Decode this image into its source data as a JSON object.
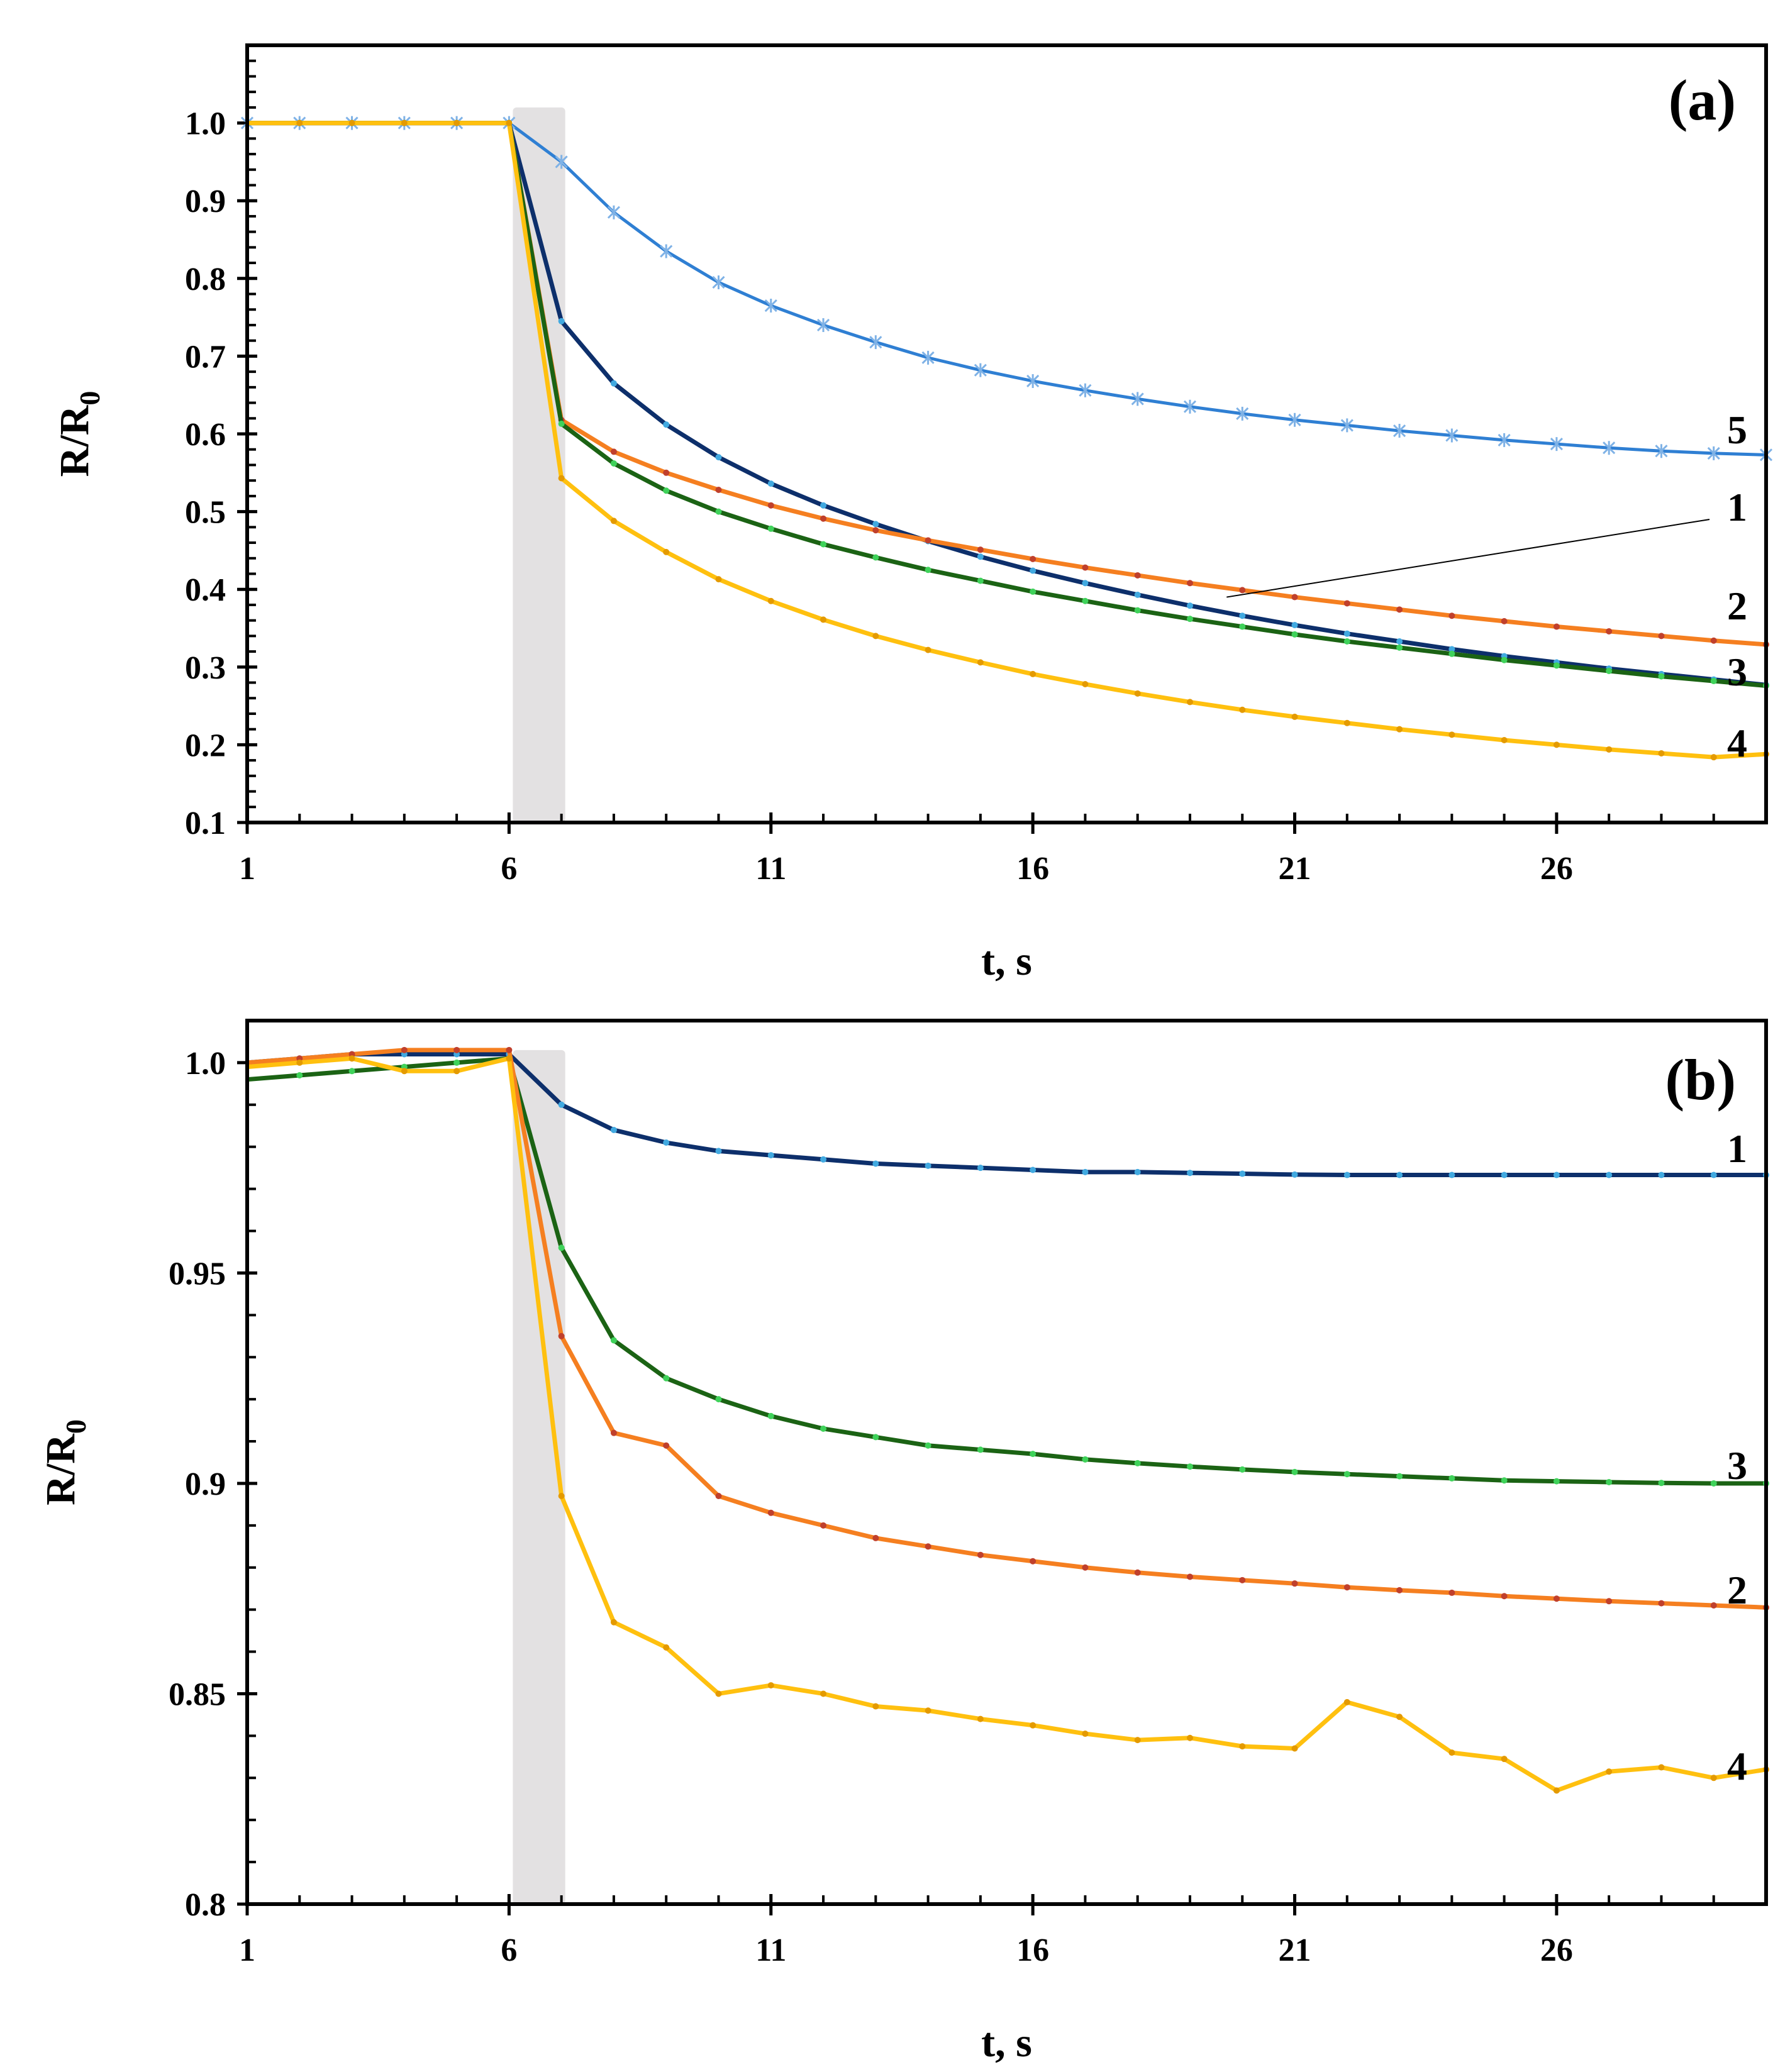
{
  "chart_data": [
    {
      "type": "line",
      "panel": "(a)",
      "xlabel": "t, s",
      "ylabel": {
        "main": "R/R",
        "sub": "0"
      },
      "xlim": [
        1,
        30
      ],
      "ylim": [
        0.1,
        1.1
      ],
      "xticks": [
        1,
        6,
        11,
        16,
        21,
        26
      ],
      "xtick_labels": [
        "1",
        "6",
        "11",
        "16",
        "21",
        "26"
      ],
      "yticks": [
        0.1,
        0.2,
        0.3,
        0.4,
        0.5,
        0.6,
        0.7,
        0.8,
        0.9,
        1.0
      ],
      "ytick_labels": [
        "0.1",
        "0.2",
        "0.3",
        "0.4",
        "0.5",
        "0.6",
        "0.7",
        "0.8",
        "0.9",
        "1.0"
      ],
      "shaded_interval": [
        6,
        7
      ],
      "grid": false,
      "x": [
        1,
        2,
        3,
        4,
        5,
        6,
        7,
        8,
        9,
        10,
        11,
        12,
        13,
        14,
        15,
        16,
        17,
        18,
        19,
        20,
        21,
        22,
        23,
        24,
        25,
        26,
        27,
        28,
        29,
        30
      ],
      "series": [
        {
          "name": "5",
          "color": "#2f7fd3",
          "marker": "x",
          "values": [
            1.0,
            1.0,
            1.0,
            1.0,
            1.0,
            1.0,
            0.95,
            0.885,
            0.835,
            0.795,
            0.765,
            0.74,
            0.718,
            0.698,
            0.682,
            0.668,
            0.656,
            0.645,
            0.635,
            0.626,
            0.618,
            0.611,
            0.604,
            0.598,
            0.592,
            0.587,
            0.582,
            0.578,
            0.575,
            0.573
          ]
        },
        {
          "name": "1",
          "color": "#0d2f6b",
          "marker": "dot",
          "markerColor": "#41a9e0",
          "values": [
            1.0,
            1.0,
            1.0,
            1.0,
            1.0,
            1.0,
            0.745,
            0.665,
            0.612,
            0.57,
            0.536,
            0.508,
            0.484,
            0.462,
            0.442,
            0.424,
            0.408,
            0.393,
            0.379,
            0.366,
            0.354,
            0.343,
            0.333,
            0.323,
            0.314,
            0.306,
            0.298,
            0.291,
            0.284,
            0.277
          ]
        },
        {
          "name": "2",
          "color": "#f57f20",
          "marker": "dot",
          "markerColor": "#c0402c",
          "values": [
            1.0,
            1.0,
            1.0,
            1.0,
            1.0,
            1.0,
            0.618,
            0.577,
            0.55,
            0.528,
            0.508,
            0.491,
            0.476,
            0.463,
            0.451,
            0.439,
            0.428,
            0.418,
            0.408,
            0.399,
            0.39,
            0.382,
            0.374,
            0.366,
            0.359,
            0.352,
            0.346,
            0.34,
            0.334,
            0.329
          ]
        },
        {
          "name": "3",
          "color": "#1b6314",
          "marker": "dot",
          "markerColor": "#3fd25a",
          "values": [
            1.0,
            1.0,
            1.0,
            1.0,
            1.0,
            1.0,
            0.613,
            0.562,
            0.527,
            0.5,
            0.478,
            0.458,
            0.441,
            0.425,
            0.411,
            0.397,
            0.385,
            0.373,
            0.362,
            0.352,
            0.342,
            0.333,
            0.325,
            0.317,
            0.309,
            0.302,
            0.295,
            0.288,
            0.282,
            0.276
          ]
        },
        {
          "name": "4",
          "color": "#ffc00f",
          "marker": "dot",
          "markerColor": "#e49a00",
          "values": [
            1.0,
            1.0,
            1.0,
            1.0,
            1.0,
            1.0,
            0.543,
            0.488,
            0.448,
            0.413,
            0.385,
            0.361,
            0.34,
            0.322,
            0.306,
            0.291,
            0.278,
            0.266,
            0.255,
            0.245,
            0.236,
            0.228,
            0.22,
            0.213,
            0.206,
            0.2,
            0.194,
            0.189,
            0.184,
            0.188
          ]
        }
      ],
      "curve_labels": [
        "5",
        "1",
        "2",
        "3",
        "4"
      ]
    },
    {
      "type": "line",
      "panel": "(b)",
      "xlabel": "t, s",
      "ylabel": {
        "main": "R/R",
        "sub": "0"
      },
      "xlim": [
        1,
        30
      ],
      "ylim": [
        0.8,
        1.01
      ],
      "xticks": [
        1,
        6,
        11,
        16,
        21,
        26
      ],
      "xtick_labels": [
        "1",
        "6",
        "11",
        "16",
        "21",
        "26"
      ],
      "yticks": [
        0.8,
        0.85,
        0.9,
        0.95,
        1.0
      ],
      "ytick_labels": [
        "0.8",
        "0.85",
        "0.9",
        "0.95",
        "1.0"
      ],
      "shaded_interval": [
        6,
        7
      ],
      "grid": false,
      "x": [
        1,
        2,
        3,
        4,
        5,
        6,
        7,
        8,
        9,
        10,
        11,
        12,
        13,
        14,
        15,
        16,
        17,
        18,
        19,
        20,
        21,
        22,
        23,
        24,
        25,
        26,
        27,
        28,
        29,
        30
      ],
      "series": [
        {
          "name": "1",
          "color": "#0d2f6b",
          "marker": "dot",
          "markerColor": "#41a9e0",
          "values": [
            1.0,
            1.001,
            1.002,
            1.002,
            1.002,
            1.002,
            0.99,
            0.984,
            0.981,
            0.979,
            0.978,
            0.977,
            0.976,
            0.9755,
            0.975,
            0.9745,
            0.974,
            0.974,
            0.9738,
            0.9736,
            0.9734,
            0.9733,
            0.9733,
            0.9733,
            0.9733,
            0.9733,
            0.9733,
            0.9733,
            0.9733,
            0.9733
          ]
        },
        {
          "name": "3",
          "color": "#1b6314",
          "marker": "dot",
          "markerColor": "#3fd25a",
          "values": [
            0.996,
            0.997,
            0.998,
            0.999,
            1.0,
            1.001,
            0.956,
            0.934,
            0.925,
            0.92,
            0.916,
            0.913,
            0.911,
            0.909,
            0.908,
            0.907,
            0.9057,
            0.9048,
            0.904,
            0.9033,
            0.9027,
            0.9022,
            0.9017,
            0.9012,
            0.9007,
            0.9005,
            0.9003,
            0.9001,
            0.9,
            0.9
          ]
        },
        {
          "name": "2",
          "color": "#f57f20",
          "marker": "dot",
          "markerColor": "#c0402c",
          "values": [
            1.0,
            1.001,
            1.002,
            1.003,
            1.003,
            1.003,
            0.935,
            0.912,
            0.909,
            0.897,
            0.893,
            0.89,
            0.887,
            0.885,
            0.883,
            0.8815,
            0.88,
            0.8788,
            0.8778,
            0.877,
            0.8762,
            0.8753,
            0.8746,
            0.874,
            0.8732,
            0.8726,
            0.872,
            0.8715,
            0.871,
            0.8705
          ]
        },
        {
          "name": "4",
          "color": "#ffc00f",
          "marker": "dot",
          "markerColor": "#e49a00",
          "values": [
            0.999,
            1.0,
            1.001,
            0.998,
            0.998,
            1.001,
            0.897,
            0.867,
            0.861,
            0.85,
            0.852,
            0.85,
            0.847,
            0.846,
            0.844,
            0.8425,
            0.8405,
            0.839,
            0.8395,
            0.8375,
            0.837,
            0.848,
            0.8445,
            0.836,
            0.8345,
            0.827,
            0.8315,
            0.8325,
            0.83,
            0.832
          ]
        }
      ],
      "curve_labels": [
        "1",
        "3",
        "2",
        "4"
      ]
    }
  ]
}
